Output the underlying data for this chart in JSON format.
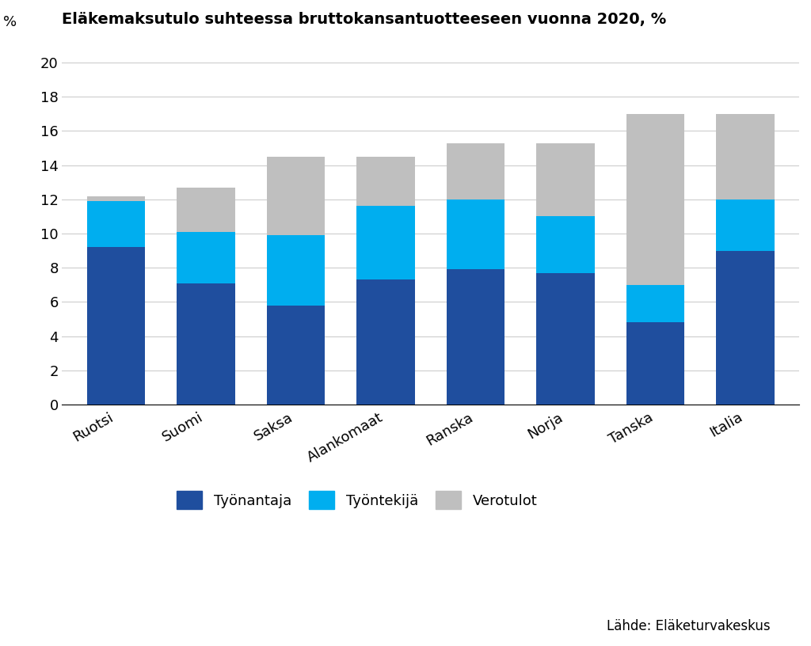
{
  "categories": [
    "Ruotsi",
    "Suomi",
    "Saksa",
    "Alankomaat",
    "Ranska",
    "Norja",
    "Tanska",
    "Italia"
  ],
  "tyonantaja": [
    9.2,
    7.1,
    5.8,
    7.3,
    7.9,
    7.7,
    4.8,
    9.0
  ],
  "tyontekija": [
    2.7,
    3.0,
    4.1,
    4.3,
    4.1,
    3.3,
    2.2,
    3.0
  ],
  "verotulot": [
    0.3,
    2.6,
    4.6,
    2.9,
    3.3,
    4.3,
    10.0,
    5.0
  ],
  "color_tyonantaja": "#1f4e9e",
  "color_tyontekija": "#00aeef",
  "color_verotulot": "#bfbfbf",
  "title": "Eläkemaksutulo suhteessa bruttokansantuotteeseen vuonna 2020, %",
  "pct_label": "%",
  "yticks": [
    0,
    2,
    4,
    6,
    8,
    10,
    12,
    14,
    16,
    18,
    20
  ],
  "legend_labels": [
    "Työnantaja",
    "Työntekijä",
    "Verotulot"
  ],
  "source_text": "Lähde: Eläketurvakeskus",
  "bar_width": 0.65,
  "ylim": [
    0,
    21.5
  ]
}
